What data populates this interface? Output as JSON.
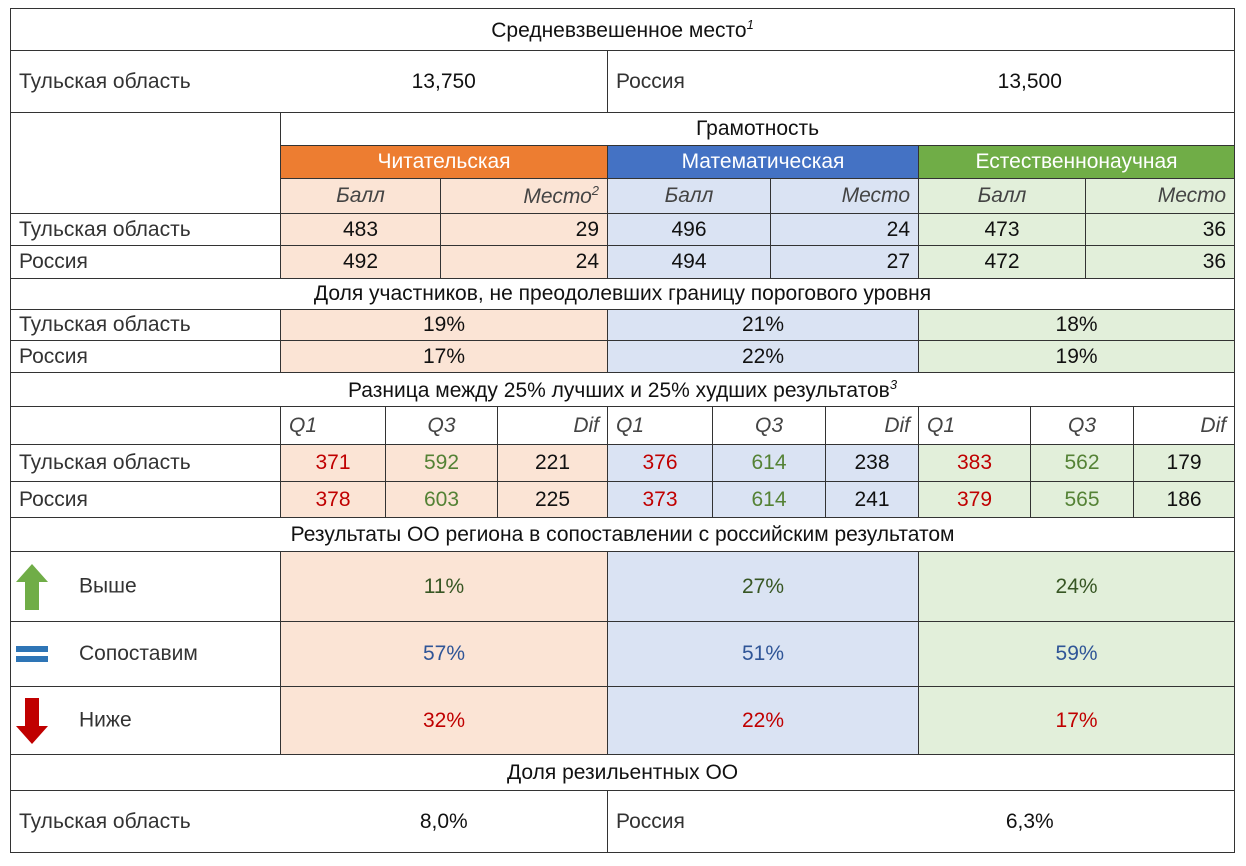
{
  "title": "Средневзвешенное место",
  "title_note": "1",
  "weighted_place": {
    "region_label": "Тульская область",
    "region_value": "13,750",
    "country_label": "Россия",
    "country_value": "13,500"
  },
  "literacy": {
    "title": "Грамотность",
    "subjects": [
      {
        "name": "Читательская",
        "score_label": "Балл",
        "place_label": "Место",
        "place_note": "2"
      },
      {
        "name": "Математическая",
        "score_label": "Балл",
        "place_label": "Место"
      },
      {
        "name": "Естественнонаучная",
        "score_label": "Балл",
        "place_label": "Место"
      }
    ]
  },
  "scores": {
    "rows": [
      {
        "label": "Тульская область",
        "values": [
          "483",
          "29",
          "496",
          "24",
          "473",
          "36"
        ]
      },
      {
        "label": "Россия",
        "values": [
          "492",
          "24",
          "494",
          "27",
          "472",
          "36"
        ]
      }
    ]
  },
  "below_threshold": {
    "title": "Доля участников, не преодолевших границу порогового уровня",
    "rows": [
      {
        "label": "Тульская область",
        "values": [
          "19%",
          "21%",
          "18%"
        ]
      },
      {
        "label": "Россия",
        "values": [
          "17%",
          "22%",
          "19%"
        ]
      }
    ]
  },
  "spread": {
    "title": "Разница между 25% лучших и 25% худших результатов",
    "note": "3",
    "columns": [
      "Q1",
      "Q3",
      "Dif",
      "Q1",
      "Q3",
      "Dif",
      "Q1",
      "Q3",
      "Dif"
    ],
    "rows": [
      {
        "label": "Тульская область",
        "values": [
          "371",
          "592",
          "221",
          "376",
          "614",
          "238",
          "383",
          "562",
          "179"
        ]
      },
      {
        "label": "Россия",
        "values": [
          "378",
          "603",
          "225",
          "373",
          "614",
          "241",
          "379",
          "565",
          "186"
        ]
      }
    ]
  },
  "comparison": {
    "title": "Результаты ОО региона в сопоставлении с российским результатом",
    "rows": [
      {
        "label": "Выше",
        "values": [
          "11%",
          "27%",
          "24%"
        ]
      },
      {
        "label": "Сопоставим",
        "values": [
          "57%",
          "51%",
          "59%"
        ]
      },
      {
        "label": "Ниже",
        "values": [
          "32%",
          "22%",
          "17%"
        ]
      }
    ]
  },
  "resilient": {
    "title": "Доля резильентных ОО",
    "region_label": "Тульская область",
    "region_value": "8,0%",
    "country_label": "Россия",
    "country_value": "6,3%"
  }
}
